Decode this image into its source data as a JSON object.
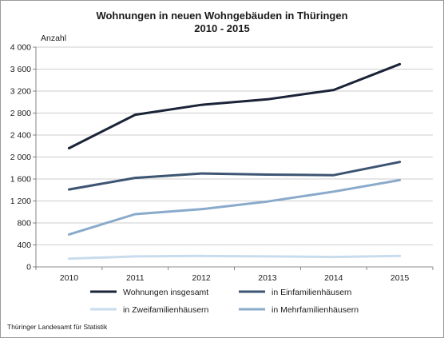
{
  "chart_data": {
    "type": "line",
    "title": "Wohnungen in neuen Wohngebäuden in Thüringen",
    "subtitle": "2010 - 2015",
    "ylabel": "Anzahl",
    "xlabel": "",
    "x": [
      "2010",
      "2011",
      "2012",
      "2013",
      "2014",
      "2015"
    ],
    "ylim": [
      0,
      4000
    ],
    "yticks": [
      0,
      400,
      800,
      1200,
      1600,
      2000,
      2400,
      2800,
      3200,
      3600,
      4000
    ],
    "ytick_labels": [
      "0",
      "400",
      "800",
      "1 200",
      "1 600",
      "2 000",
      "2 400",
      "2 800",
      "3 200",
      "3 600",
      "4 000"
    ],
    "grid": true,
    "legend_position": "bottom",
    "series": [
      {
        "name": "Wohnungen insgesamt",
        "color": "#1b2338",
        "values": [
          2160,
          2770,
          2950,
          3050,
          3220,
          3690
        ]
      },
      {
        "name": "in Einfamilienhäusern",
        "color": "#3d5573",
        "values": [
          1410,
          1620,
          1700,
          1680,
          1670,
          1910
        ]
      },
      {
        "name": "in Zweifamilienhäusern",
        "color": "#c8dced",
        "values": [
          150,
          190,
          200,
          190,
          180,
          200
        ]
      },
      {
        "name": "in Mehrfamilienhäusern",
        "color": "#8aaacb",
        "values": [
          590,
          960,
          1050,
          1190,
          1370,
          1580
        ]
      }
    ]
  },
  "source": "Thüringer Landesamt für Statistik"
}
